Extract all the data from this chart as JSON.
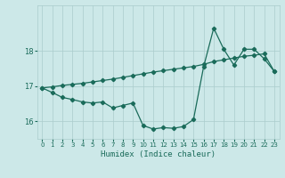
{
  "xlabel": "Humidex (Indice chaleur)",
  "xlim": [
    -0.5,
    23.5
  ],
  "ylim": [
    15.5,
    19.3
  ],
  "yticks": [
    16,
    17,
    18
  ],
  "xticks": [
    0,
    1,
    2,
    3,
    4,
    5,
    6,
    7,
    8,
    9,
    10,
    11,
    12,
    13,
    14,
    15,
    16,
    17,
    18,
    19,
    20,
    21,
    22,
    23
  ],
  "bg_color": "#cce8e8",
  "grid_color": "#aacccc",
  "line_color": "#1a6b5a",
  "line1_x": [
    0,
    1,
    2,
    3,
    4,
    5,
    6,
    7,
    8,
    9,
    10,
    11,
    12,
    13,
    14,
    15,
    16,
    17,
    18,
    19,
    20,
    21,
    22,
    23
  ],
  "line1_y": [
    16.95,
    16.82,
    16.68,
    16.62,
    16.55,
    16.52,
    16.55,
    16.38,
    16.45,
    16.52,
    15.88,
    15.78,
    15.82,
    15.8,
    15.85,
    16.05,
    17.55,
    18.65,
    18.05,
    17.6,
    18.05,
    18.05,
    17.78,
    17.42
  ],
  "line2_x": [
    0,
    1,
    2,
    3,
    4,
    5,
    6,
    7,
    8,
    9,
    10,
    11,
    12,
    13,
    14,
    15,
    16,
    17,
    18,
    19,
    20,
    21,
    22,
    23
  ],
  "line2_y": [
    16.95,
    16.98,
    17.02,
    17.05,
    17.08,
    17.12,
    17.16,
    17.2,
    17.25,
    17.3,
    17.35,
    17.4,
    17.44,
    17.48,
    17.52,
    17.56,
    17.62,
    17.7,
    17.75,
    17.8,
    17.85,
    17.88,
    17.92,
    17.42
  ]
}
